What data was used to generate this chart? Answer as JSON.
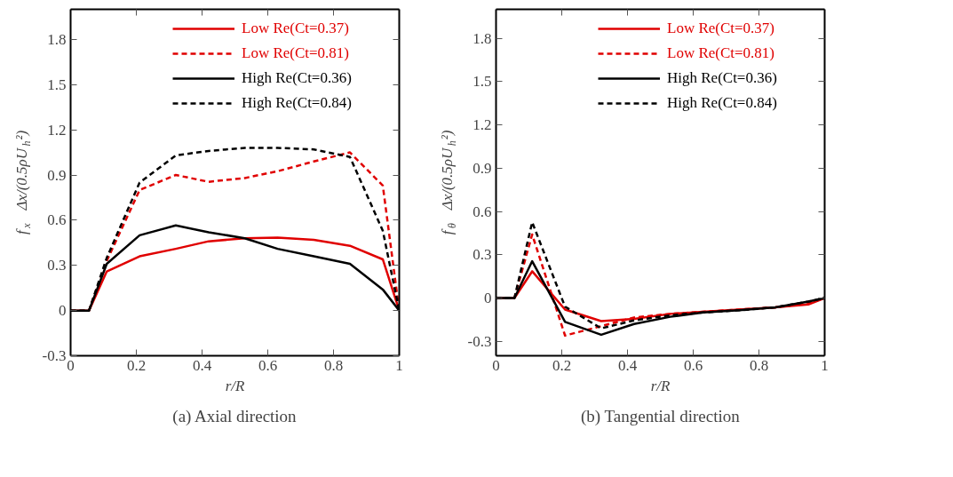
{
  "chart_data": [
    {
      "type": "line",
      "xlabel": "r/R",
      "ylabel": "f$_{x}$ Δx/(0.5ρU$_{h}$²)",
      "annotations": [
        "(a) Axial direction"
      ],
      "xlim": [
        0,
        1
      ],
      "ylim": [
        -0.3,
        2.0
      ],
      "xticks": [
        0,
        0.2,
        0.4,
        0.6,
        0.8,
        1
      ],
      "yticks": [
        -0.3,
        0,
        0.3,
        0.6,
        0.9,
        1.2,
        1.5,
        1.8
      ],
      "legend": "top right",
      "grid": false,
      "x": [
        0,
        0.056,
        0.11,
        0.21,
        0.32,
        0.42,
        0.53,
        0.63,
        0.74,
        0.85,
        0.95,
        1.0
      ],
      "series": [
        {
          "name": "Low Re(Ct=0.37)",
          "color": "#e00000",
          "line_style": "solid",
          "values": [
            0,
            0,
            0.26,
            0.36,
            0.41,
            0.46,
            0.48,
            0.485,
            0.47,
            0.43,
            0.34,
            0
          ]
        },
        {
          "name": "Low Re(Ct=0.81)",
          "color": "#e00000",
          "line_style": "dashed",
          "values": [
            0,
            0,
            0.33,
            0.8,
            0.9,
            0.855,
            0.88,
            0.925,
            0.99,
            1.05,
            0.83,
            0
          ]
        },
        {
          "name": "High Re(Ct=0.36)",
          "color": "#000000",
          "line_style": "solid",
          "values": [
            0,
            0,
            0.31,
            0.5,
            0.565,
            0.52,
            0.48,
            0.41,
            0.36,
            0.31,
            0.14,
            0
          ]
        },
        {
          "name": "High Re(Ct=0.84)",
          "color": "#000000",
          "line_style": "dashed",
          "values": [
            0,
            0,
            0.35,
            0.85,
            1.03,
            1.06,
            1.08,
            1.08,
            1.07,
            1.02,
            0.53,
            0
          ]
        }
      ]
    },
    {
      "type": "line",
      "xlabel": "r/R",
      "ylabel": "f$_{θ}$ Δx/(0.5ρU$_{h}$²)",
      "annotations": [
        "(b) Tangential direction"
      ],
      "xlim": [
        0,
        1
      ],
      "ylim": [
        -0.4,
        2.0
      ],
      "xticks": [
        0,
        0.2,
        0.4,
        0.6,
        0.8,
        1
      ],
      "yticks": [
        -0.3,
        0,
        0.3,
        0.6,
        0.9,
        1.2,
        1.5,
        1.8
      ],
      "legend": "top right",
      "grid": false,
      "x": [
        0,
        0.056,
        0.11,
        0.21,
        0.32,
        0.42,
        0.53,
        0.63,
        0.74,
        0.85,
        0.95,
        1.0
      ],
      "series": [
        {
          "name": "Low Re(Ct=0.37)",
          "color": "#e00000",
          "line_style": "solid",
          "values": [
            0,
            0,
            0.185,
            -0.08,
            -0.16,
            -0.145,
            -0.11,
            -0.095,
            -0.08,
            -0.065,
            -0.045,
            0
          ]
        },
        {
          "name": "Low Re(Ct=0.81)",
          "color": "#e00000",
          "line_style": "dashed",
          "values": [
            0,
            0,
            0.44,
            -0.26,
            -0.195,
            -0.135,
            -0.11,
            -0.095,
            -0.08,
            -0.065,
            -0.035,
            0
          ]
        },
        {
          "name": "High Re(Ct=0.36)",
          "color": "#000000",
          "line_style": "solid",
          "values": [
            0,
            0,
            0.255,
            -0.165,
            -0.255,
            -0.18,
            -0.13,
            -0.1,
            -0.085,
            -0.065,
            -0.025,
            0
          ]
        },
        {
          "name": "High Re(Ct=0.84)",
          "color": "#000000",
          "line_style": "dashed",
          "values": [
            0,
            0,
            0.525,
            -0.06,
            -0.21,
            -0.155,
            -0.12,
            -0.1,
            -0.085,
            -0.065,
            -0.025,
            0
          ]
        }
      ]
    }
  ]
}
